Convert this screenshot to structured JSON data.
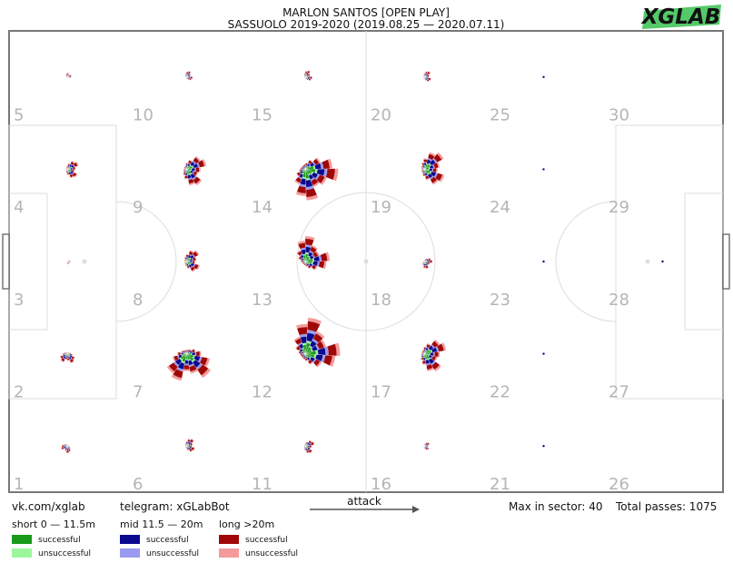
{
  "colors": {
    "short_successful": "#1a9a1a",
    "short_unsuccessful": "#9cf79c",
    "mid_successful": "#0a0a8f",
    "mid_unsuccessful": "#9a9af0",
    "long_successful": "#a00808",
    "long_unsuccessful": "#f59a9a",
    "pitch_border": "#777777",
    "pitch_lines": "#dddddd",
    "zone_label": "#b5b5b5",
    "logo_bg": "#55c96a"
  },
  "header": {
    "title": "MARLON SANTOS [OPEN PLAY]",
    "subtitle": "SASSUOLO 2019-2020 (2019.08.25 — 2020.07.11)"
  },
  "logo": {
    "text": "XGLAB"
  },
  "footer": {
    "vk": "vk.com/xglab",
    "telegram": "telegram: xGLabBot",
    "attack_label": "attack",
    "max_in_sector": "Max in sector: 40",
    "total_passes": "Total passes: 1075"
  },
  "legend": {
    "groups": [
      {
        "title": "short 0 — 11.5m",
        "items": [
          {
            "label": "successful",
            "color_key": "short_successful"
          },
          {
            "label": "unsuccessful",
            "color_key": "short_unsuccessful"
          }
        ]
      },
      {
        "title": "mid 11.5 — 20m",
        "items": [
          {
            "label": "successful",
            "color_key": "mid_successful"
          },
          {
            "label": "unsuccessful",
            "color_key": "mid_unsuccessful"
          }
        ]
      },
      {
        "title": "long >20m",
        "items": [
          {
            "label": "successful",
            "color_key": "long_successful"
          },
          {
            "label": "unsuccessful",
            "color_key": "long_unsuccessful"
          }
        ]
      }
    ]
  },
  "chart_data": {
    "type": "pass-rose-grid",
    "title": "MARLON SANTOS [OPEN PLAY]",
    "subtitle": "SASSUOLO 2019-2020 (2019.08.25 — 2020.07.11)",
    "grid": {
      "columns": 6,
      "rows": 5
    },
    "max_in_sector": 40,
    "total_passes": 1075,
    "attack_direction": "right",
    "zones": [
      {
        "id": 1,
        "col": 0,
        "row": 0,
        "label": "1",
        "radius": 0.2,
        "dir": 270
      },
      {
        "id": 2,
        "col": 0,
        "row": 1,
        "label": "2",
        "radius": 0.28,
        "dir": 300
      },
      {
        "id": 3,
        "col": 0,
        "row": 2,
        "label": "3",
        "radius": 0.08,
        "dir": 0
      },
      {
        "id": 4,
        "col": 0,
        "row": 3,
        "label": "4",
        "radius": 0.32,
        "dir": 30
      },
      {
        "id": 5,
        "col": 0,
        "row": 4,
        "label": "5",
        "radius": 0.12,
        "dir": 90
      },
      {
        "id": 6,
        "col": 1,
        "row": 0,
        "label": "6",
        "radius": 0.25,
        "dir": 45
      },
      {
        "id": 7,
        "col": 1,
        "row": 1,
        "label": "7",
        "radius": 0.8,
        "dir": 315
      },
      {
        "id": 8,
        "col": 1,
        "row": 2,
        "label": "8",
        "radius": 0.4,
        "dir": 40
      },
      {
        "id": 9,
        "col": 1,
        "row": 3,
        "label": "9",
        "radius": 0.55,
        "dir": 20
      },
      {
        "id": 10,
        "col": 1,
        "row": 4,
        "label": "10",
        "radius": 0.18,
        "dir": 60
      },
      {
        "id": 11,
        "col": 2,
        "row": 0,
        "label": "11",
        "radius": 0.25,
        "dir": 20
      },
      {
        "id": 12,
        "col": 2,
        "row": 1,
        "label": "12",
        "radius": 1.0,
        "dir": 75
      },
      {
        "id": 13,
        "col": 2,
        "row": 2,
        "label": "13",
        "radius": 0.7,
        "dir": 80
      },
      {
        "id": 14,
        "col": 2,
        "row": 3,
        "label": "14",
        "radius": 0.9,
        "dir": 350
      },
      {
        "id": 15,
        "col": 2,
        "row": 4,
        "label": "15",
        "radius": 0.2,
        "dir": 60
      },
      {
        "id": 16,
        "col": 3,
        "row": 0,
        "label": "16",
        "radius": 0.15,
        "dir": 30
      },
      {
        "id": 17,
        "col": 3,
        "row": 1,
        "label": "17",
        "radius": 0.6,
        "dir": 20
      },
      {
        "id": 18,
        "col": 3,
        "row": 2,
        "label": "18",
        "radius": 0.22,
        "dir": 0
      },
      {
        "id": 19,
        "col": 3,
        "row": 3,
        "label": "19",
        "radius": 0.6,
        "dir": 40
      },
      {
        "id": 20,
        "col": 3,
        "row": 4,
        "label": "20",
        "radius": 0.2,
        "dir": 45
      },
      {
        "id": 21,
        "col": 4,
        "row": 0,
        "label": "21",
        "radius": 0.04,
        "dir": 0
      },
      {
        "id": 22,
        "col": 4,
        "row": 1,
        "label": "22",
        "radius": 0.05,
        "dir": 0
      },
      {
        "id": 23,
        "col": 4,
        "row": 2,
        "label": "23",
        "radius": 0.03,
        "dir": 0
      },
      {
        "id": 24,
        "col": 4,
        "row": 3,
        "label": "24",
        "radius": 0.06,
        "dir": 0
      },
      {
        "id": 25,
        "col": 4,
        "row": 4,
        "label": "25",
        "radius": 0.03,
        "dir": 0
      },
      {
        "id": 26,
        "col": 5,
        "row": 0,
        "label": "26",
        "radius": 0.0,
        "dir": 0
      },
      {
        "id": 27,
        "col": 5,
        "row": 1,
        "label": "27",
        "radius": 0.0,
        "dir": 0
      },
      {
        "id": 28,
        "col": 5,
        "row": 2,
        "label": "28",
        "radius": 0.03,
        "dir": 0
      },
      {
        "id": 29,
        "col": 5,
        "row": 3,
        "label": "29",
        "radius": 0.0,
        "dir": 0
      },
      {
        "id": 30,
        "col": 5,
        "row": 4,
        "label": "30",
        "radius": 0.0,
        "dir": 0
      }
    ]
  }
}
